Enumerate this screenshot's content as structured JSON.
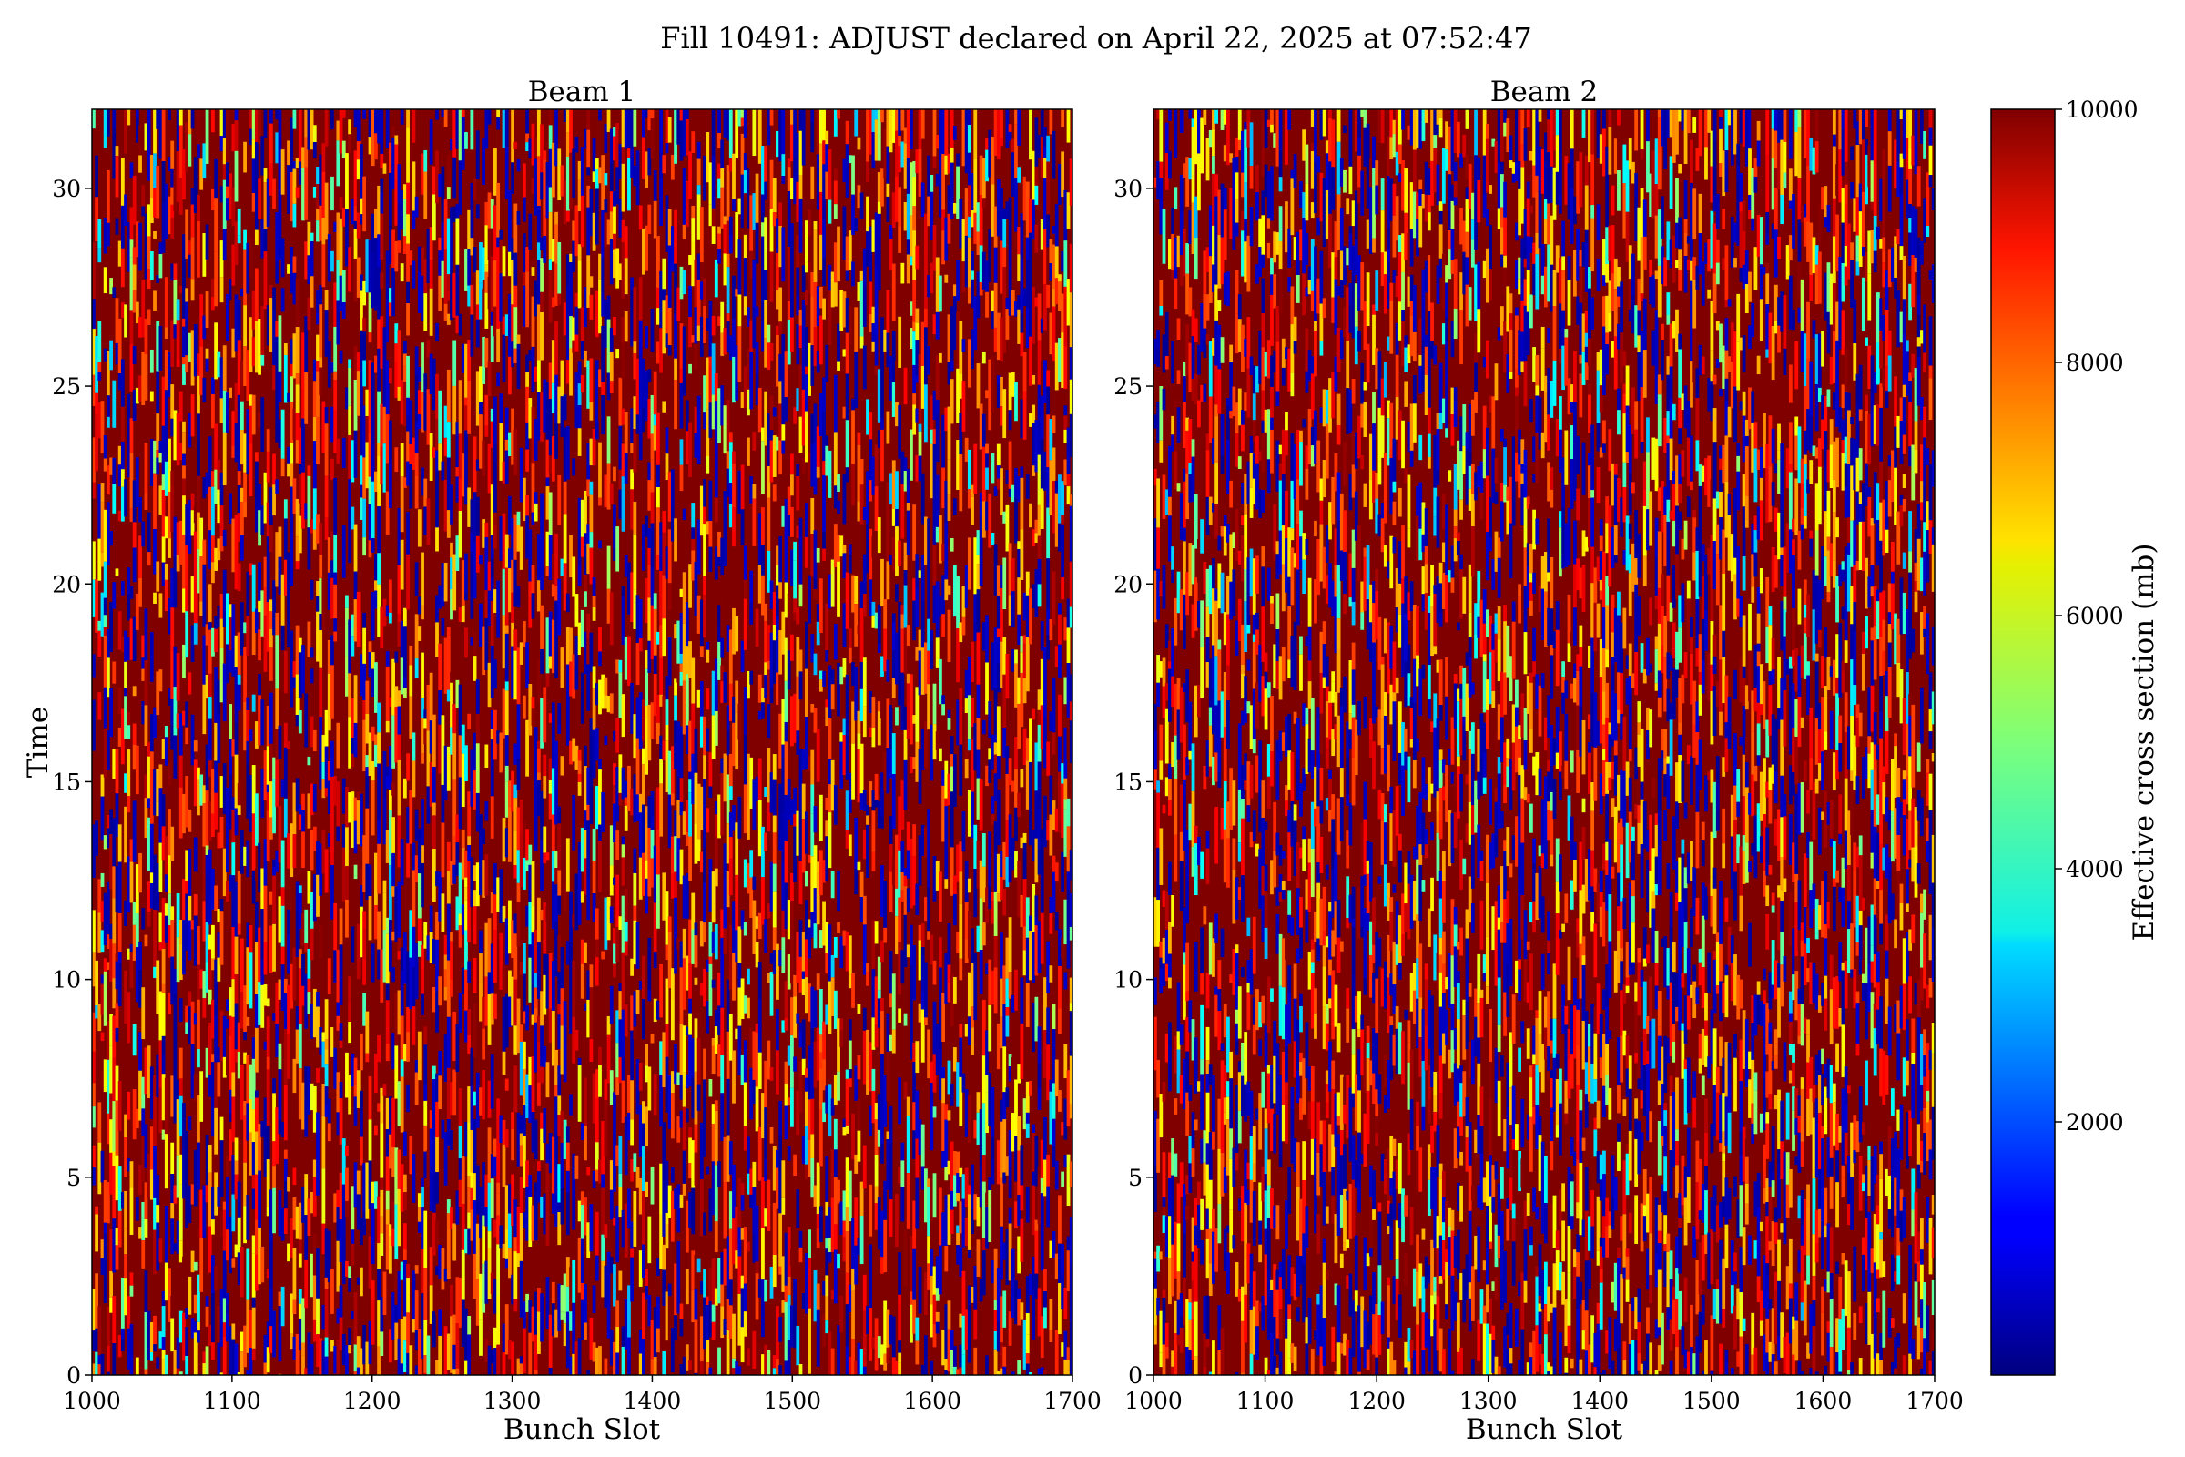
{
  "figure": {
    "suptitle": "Fill 10491: ADJUST declared on April 22, 2025 at 07:52:47"
  },
  "colorbar": {
    "label": "Effective cross section (mb)",
    "colormap": "jet",
    "range": [
      0,
      10000
    ],
    "ticks": [
      2000,
      4000,
      6000,
      8000,
      10000
    ]
  },
  "chart_data": [
    {
      "type": "heatmap",
      "title": "Beam 1",
      "xlabel": "Bunch Slot",
      "ylabel": "Time",
      "xlim": [
        1000,
        1700
      ],
      "ylim": [
        0,
        32
      ],
      "xticks": [
        1000,
        1100,
        1200,
        1300,
        1400,
        1500,
        1600,
        1700
      ],
      "yticks": [
        0,
        5,
        10,
        15,
        20,
        25,
        30
      ],
      "z_range": [
        0,
        10000
      ],
      "colormap": "jet",
      "dominant_value": 10000,
      "description_of_values": "dense vertical streaks; mostly saturated near 10000 mb with frequent drops to low values"
    },
    {
      "type": "heatmap",
      "title": "Beam 2",
      "xlabel": "Bunch Slot",
      "ylabel": "",
      "xlim": [
        1000,
        1700
      ],
      "ylim": [
        0,
        32
      ],
      "xticks": [
        1000,
        1100,
        1200,
        1300,
        1400,
        1500,
        1600,
        1700
      ],
      "yticks": [
        0,
        5,
        10,
        15,
        20,
        25,
        30
      ],
      "z_range": [
        0,
        10000
      ],
      "colormap": "jet",
      "dominant_value": 10000,
      "description_of_values": "dense vertical streaks; mostly saturated near 10000 mb with frequent drops to low values"
    }
  ]
}
